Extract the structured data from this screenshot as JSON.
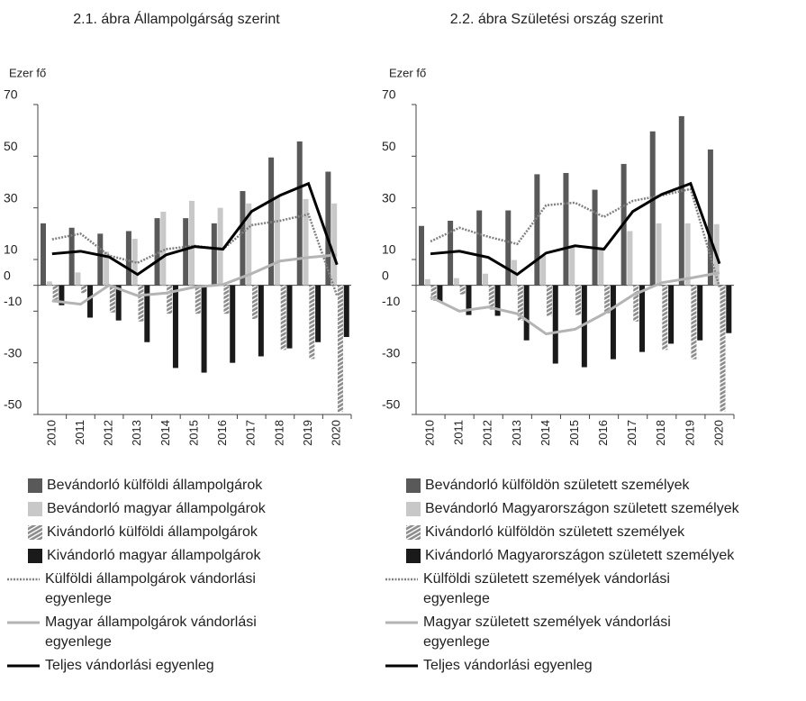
{
  "chart_data": [
    {
      "type": "bar",
      "title": "2.1. ábra Állampolgárság szerint",
      "y_label": "Ezer fő",
      "categories": [
        "2010",
        "2011",
        "2012",
        "2013",
        "2014",
        "2015",
        "2016",
        "2017",
        "2018",
        "2019",
        "2020"
      ],
      "ylim": [
        -50,
        70
      ],
      "yticks": [
        70,
        50,
        30,
        10,
        0,
        -10,
        -30,
        -50
      ],
      "series": [
        {
          "name": "Bevándorló külföldi állampolgárok",
          "type": "bar",
          "color": "#595959",
          "values": [
            24,
            22.3,
            20,
            21,
            26,
            26,
            24,
            36.5,
            49.5,
            55.7,
            44
          ]
        },
        {
          "name": "Bevándorló magyar állampolgárok",
          "type": "bar",
          "color": "#c8c8c8",
          "values": [
            1.5,
            5,
            13,
            18,
            28.5,
            32.7,
            30,
            31.7,
            34,
            33.4,
            31.7
          ]
        },
        {
          "name": "Kivándorló külföldi állampolgárok",
          "type": "bar",
          "color": "#8c8c8c",
          "pattern": "stripes",
          "values": [
            -5.6,
            -3,
            -10.5,
            -14,
            -11,
            -11,
            -11,
            -13,
            -25,
            -28.5,
            -49
          ]
        },
        {
          "name": "Kivándorló magyar állampolgárok",
          "type": "bar",
          "color": "#1a1a1a",
          "values": [
            -7.7,
            -12.5,
            -13.6,
            -22,
            -32,
            -33.8,
            -30,
            -27.5,
            -24.4,
            -22,
            -20
          ]
        },
        {
          "name": "Külföldi állampolgárok vándorlási egyenlege",
          "type": "line",
          "color": "#808080",
          "dash": "dotted",
          "values": [
            17.8,
            20,
            11.5,
            8.7,
            14,
            15.3,
            14,
            23.3,
            25,
            27.5,
            -4
          ]
        },
        {
          "name": "Magyar állampolgárok vándorlási egyenlege",
          "type": "line",
          "color": "#b4b4b4",
          "values": [
            -6,
            -7.3,
            0,
            -4,
            -3,
            -0.7,
            0.3,
            4.5,
            9.4,
            10.8,
            11.8
          ]
        },
        {
          "name": "Teljes vándorlási egyenleg",
          "type": "line",
          "color": "#000000",
          "values": [
            12.2,
            13.2,
            11,
            4.2,
            11.8,
            15,
            14,
            28.6,
            34.8,
            39.4,
            8
          ]
        }
      ]
    },
    {
      "type": "bar",
      "title": "2.2. ábra Születési ország szerint",
      "y_label": "Ezer fő",
      "categories": [
        "2010",
        "2011",
        "2012",
        "2013",
        "2014",
        "2015",
        "2016",
        "2017",
        "2018",
        "2019",
        "2020"
      ],
      "ylim": [
        -50,
        70
      ],
      "yticks": [
        70,
        50,
        30,
        10,
        0,
        -10,
        -30,
        -50
      ],
      "series": [
        {
          "name": "Bevándorló külföldön született személyek",
          "type": "bar",
          "color": "#595959",
          "values": [
            23,
            25,
            29,
            29,
            43,
            43.5,
            37,
            47,
            59.6,
            65.5,
            52.6
          ]
        },
        {
          "name": "Bevándorló Magyarországon született személyek",
          "type": "bar",
          "color": "#c8c8c8",
          "values": [
            2.4,
            2.8,
            4.5,
            9.8,
            11.5,
            15,
            14.6,
            21,
            24,
            24,
            23.7
          ]
        },
        {
          "name": "Kivándorló külföldön született személyek",
          "type": "bar",
          "color": "#8c8c8c",
          "pattern": "stripes",
          "values": [
            -6,
            -3.5,
            -9.4,
            -13.6,
            -11.8,
            -11.5,
            -10.8,
            -14,
            -25,
            -28.6,
            -48.8
          ]
        },
        {
          "name": "Kivándorló Magyarországon született személyek",
          "type": "bar",
          "color": "#1a1a1a",
          "values": [
            -6.3,
            -11.5,
            -11.8,
            -21.3,
            -30.3,
            -31.7,
            -28.6,
            -25.8,
            -22.6,
            -21.3,
            -18.5
          ]
        },
        {
          "name": "Külföldi született személyek vándorlási egyenlege",
          "type": "line",
          "color": "#808080",
          "dash": "dotted",
          "values": [
            17,
            22.3,
            18.8,
            16,
            31,
            32,
            26.5,
            32.7,
            34.8,
            37.3,
            -0.7
          ]
        },
        {
          "name": "Magyar született személyek vándorlási egyenlege",
          "type": "line",
          "color": "#b4b4b4",
          "values": [
            -4.5,
            -10,
            -8.4,
            -11,
            -18.8,
            -17,
            -11,
            -3.8,
            1,
            2.8,
            4.9
          ]
        },
        {
          "name": "Teljes vándorlási egyenleg",
          "type": "line",
          "color": "#000000",
          "values": [
            12.2,
            13.2,
            10.8,
            4.2,
            12.5,
            15.3,
            14,
            28.6,
            35.2,
            39.4,
            8.4
          ]
        }
      ]
    }
  ]
}
